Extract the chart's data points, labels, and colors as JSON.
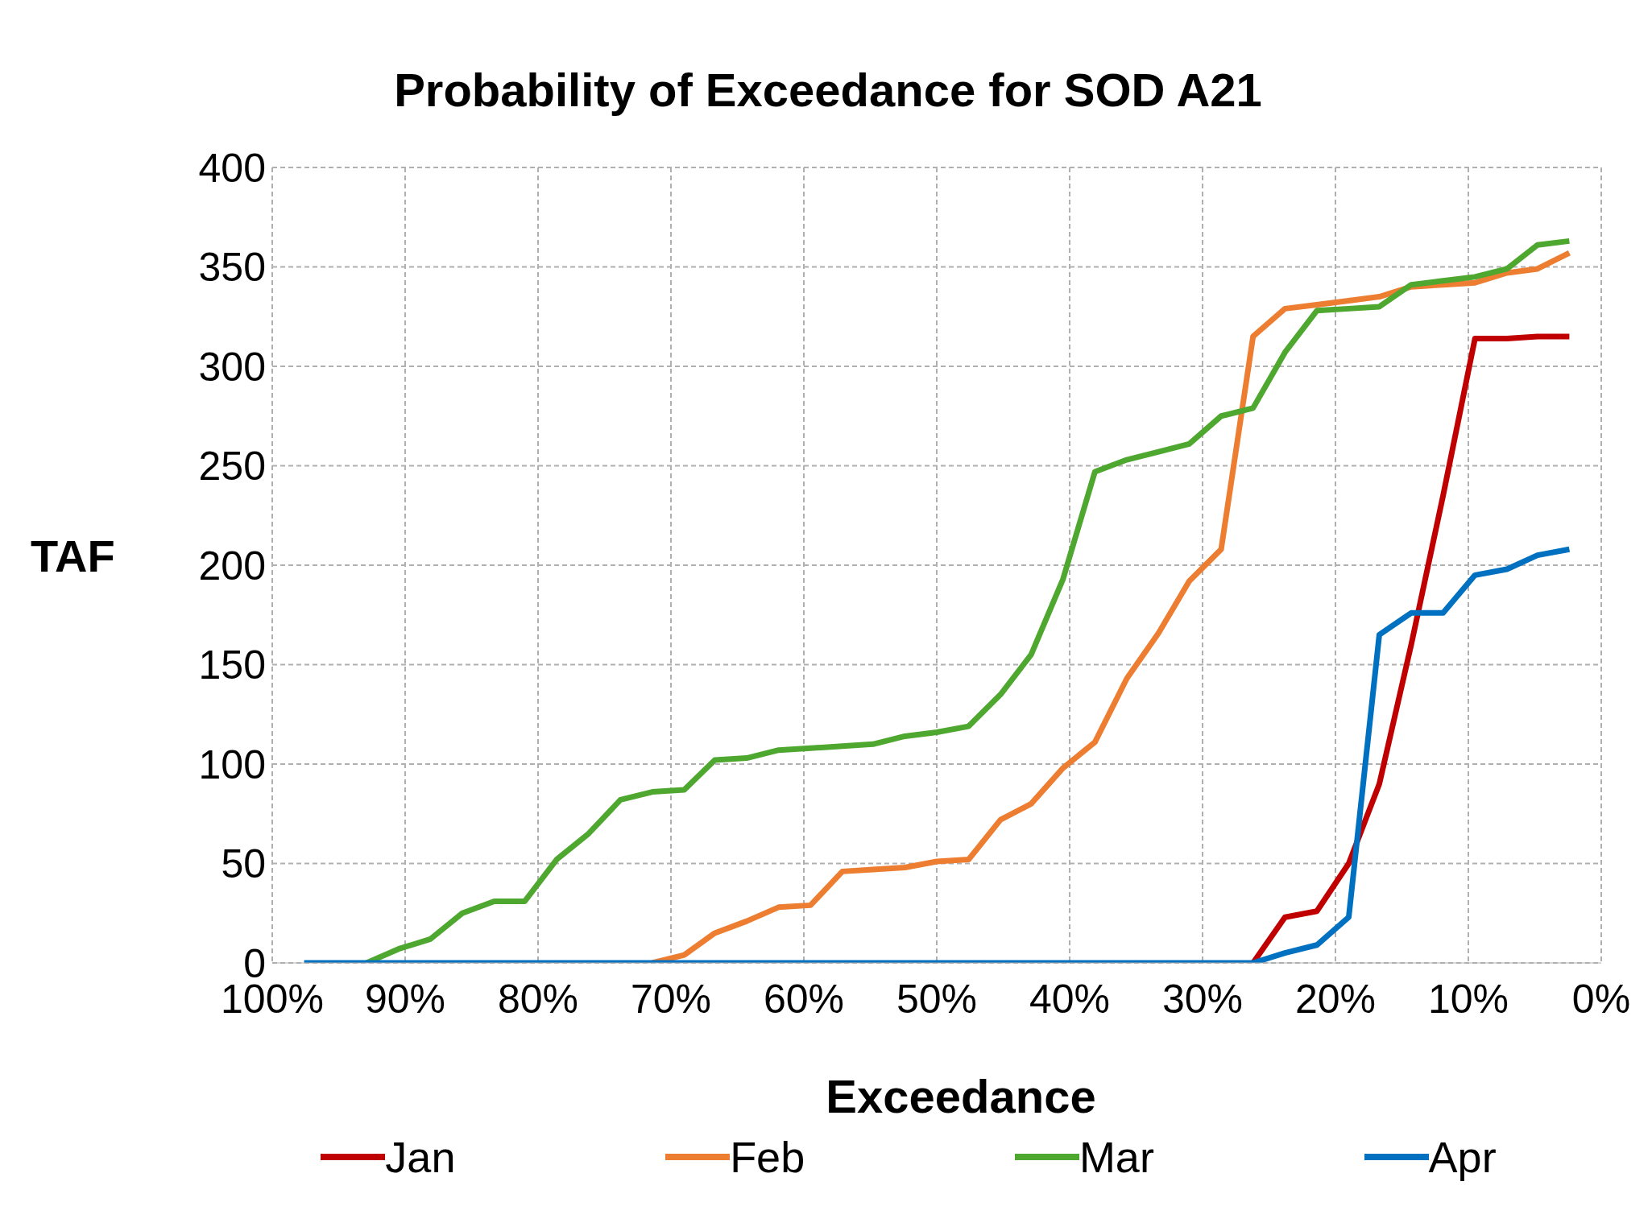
{
  "chart_data": {
    "type": "line",
    "title": "Probability of Exceedance for SOD A21",
    "xlabel": "Exceedance",
    "ylabel": "TAF",
    "x": [
      97.6,
      95.2,
      92.9,
      90.5,
      88.1,
      85.7,
      83.3,
      81.0,
      78.6,
      76.2,
      73.8,
      71.4,
      69.0,
      66.7,
      64.3,
      61.9,
      59.5,
      57.1,
      54.8,
      52.4,
      50.0,
      47.6,
      45.2,
      42.9,
      40.5,
      38.1,
      35.7,
      33.3,
      31.0,
      28.6,
      26.2,
      23.8,
      21.4,
      19.0,
      16.7,
      14.3,
      11.9,
      9.5,
      7.1,
      4.8,
      2.4
    ],
    "series": [
      {
        "name": "Jan",
        "color": "#c00000",
        "values": [
          null,
          null,
          null,
          null,
          null,
          null,
          null,
          null,
          null,
          null,
          null,
          null,
          null,
          null,
          null,
          null,
          null,
          null,
          null,
          null,
          null,
          null,
          null,
          null,
          null,
          null,
          null,
          null,
          null,
          null,
          0,
          23,
          26,
          50,
          90,
          160,
          235,
          314,
          314,
          315,
          315
        ]
      },
      {
        "name": "Feb",
        "color": "#ed7d31",
        "values": [
          null,
          null,
          null,
          null,
          null,
          null,
          null,
          null,
          null,
          null,
          null,
          0,
          4,
          15,
          21,
          28,
          29,
          46,
          47,
          48,
          51,
          52,
          72,
          80,
          98,
          111,
          143,
          166,
          192,
          208,
          315,
          329,
          331,
          333,
          335,
          340,
          341,
          342,
          347,
          349,
          357
        ]
      },
      {
        "name": "Mar",
        "color": "#4ea72e",
        "values": [
          null,
          null,
          0,
          7,
          12,
          25,
          31,
          31,
          52,
          65,
          82,
          86,
          87,
          102,
          103,
          107,
          108,
          109,
          110,
          114,
          116,
          119,
          135,
          155,
          193,
          247,
          253,
          257,
          261,
          275,
          279,
          307,
          328,
          329,
          330,
          341,
          343,
          345,
          349,
          361,
          363
        ]
      },
      {
        "name": "Apr",
        "color": "#0070c0",
        "values": [
          0,
          0,
          0,
          0,
          0,
          0,
          0,
          0,
          0,
          0,
          0,
          0,
          0,
          0,
          0,
          0,
          0,
          0,
          0,
          0,
          0,
          0,
          0,
          0,
          0,
          0,
          0,
          0,
          0,
          0,
          0,
          5,
          9,
          23,
          165,
          176,
          176,
          195,
          198,
          205,
          208
        ]
      }
    ],
    "xlim": [
      100,
      0
    ],
    "xticks": [
      {
        "value": 100,
        "label": "100%"
      },
      {
        "value": 90,
        "label": "90%"
      },
      {
        "value": 80,
        "label": "80%"
      },
      {
        "value": 70,
        "label": "70%"
      },
      {
        "value": 60,
        "label": "60%"
      },
      {
        "value": 50,
        "label": "50%"
      },
      {
        "value": 40,
        "label": "40%"
      },
      {
        "value": 30,
        "label": "30%"
      },
      {
        "value": 20,
        "label": "20%"
      },
      {
        "value": 10,
        "label": "10%"
      },
      {
        "value": 0,
        "label": "0%"
      }
    ],
    "ylim": [
      0,
      400
    ],
    "yticks": [
      0,
      50,
      100,
      150,
      200,
      250,
      300,
      350,
      400
    ],
    "grid": true,
    "legend": "bottom",
    "marker": "none",
    "line_style": "solid"
  }
}
